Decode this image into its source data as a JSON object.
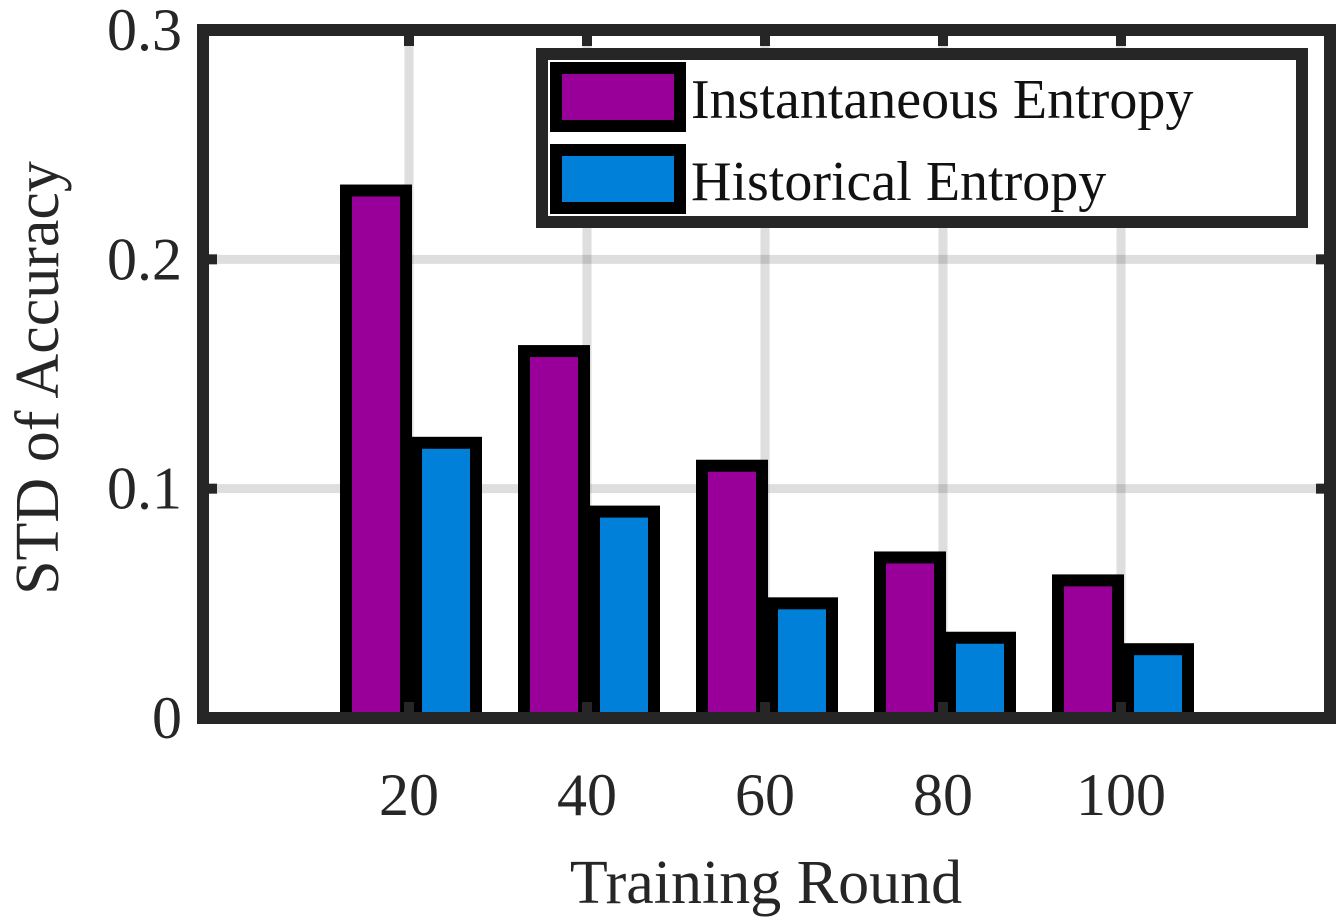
{
  "chart_data": {
    "type": "bar",
    "xlabel": "Training Round",
    "ylabel": "STD of Accuracy",
    "categories": [
      "20",
      "40",
      "60",
      "80",
      "100"
    ],
    "series": [
      {
        "name": "Instantaneous Entropy",
        "color": "#990099",
        "values": [
          0.23,
          0.16,
          0.11,
          0.07,
          0.06
        ]
      },
      {
        "name": "Historical Entropy",
        "color": "#0080D9",
        "values": [
          0.12,
          0.09,
          0.05,
          0.035,
          0.03
        ]
      }
    ],
    "ylim": [
      0,
      0.3
    ],
    "yticks": [
      "0",
      "0.1",
      "0.2",
      "0.3"
    ],
    "grid": true,
    "legend_position": "top-right"
  }
}
